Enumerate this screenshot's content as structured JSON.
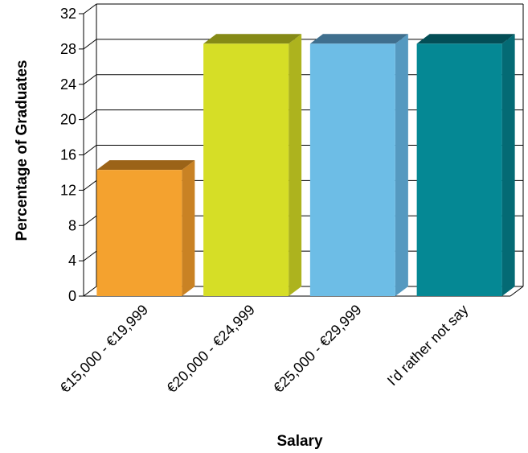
{
  "chart_data": {
    "type": "bar",
    "categories": [
      "€15,000 - €19,999",
      "€20,000 - €24,999",
      "€25,000 - €29,999",
      "I'd rather not say"
    ],
    "values": [
      14.3,
      28.6,
      28.6,
      28.6
    ],
    "xlabel": "Salary",
    "ylabel": "Percentage of Graduates",
    "ylim": [
      0,
      32
    ],
    "yticks": [
      "0",
      "4",
      "8",
      "12",
      "16",
      "20",
      "24",
      "28",
      "32"
    ],
    "grid": true,
    "legend": "none",
    "colors": [
      {
        "front": "#F4A22F",
        "side": "#C98224",
        "top": "#9B6318"
      },
      {
        "front": "#D6DE26",
        "side": "#ADB31E",
        "top": "#858A16"
      },
      {
        "front": "#6DBDE6",
        "side": "#5599C0",
        "top": "#3F6F8E"
      },
      {
        "front": "#058894",
        "side": "#046A74",
        "top": "#034E56"
      }
    ]
  }
}
